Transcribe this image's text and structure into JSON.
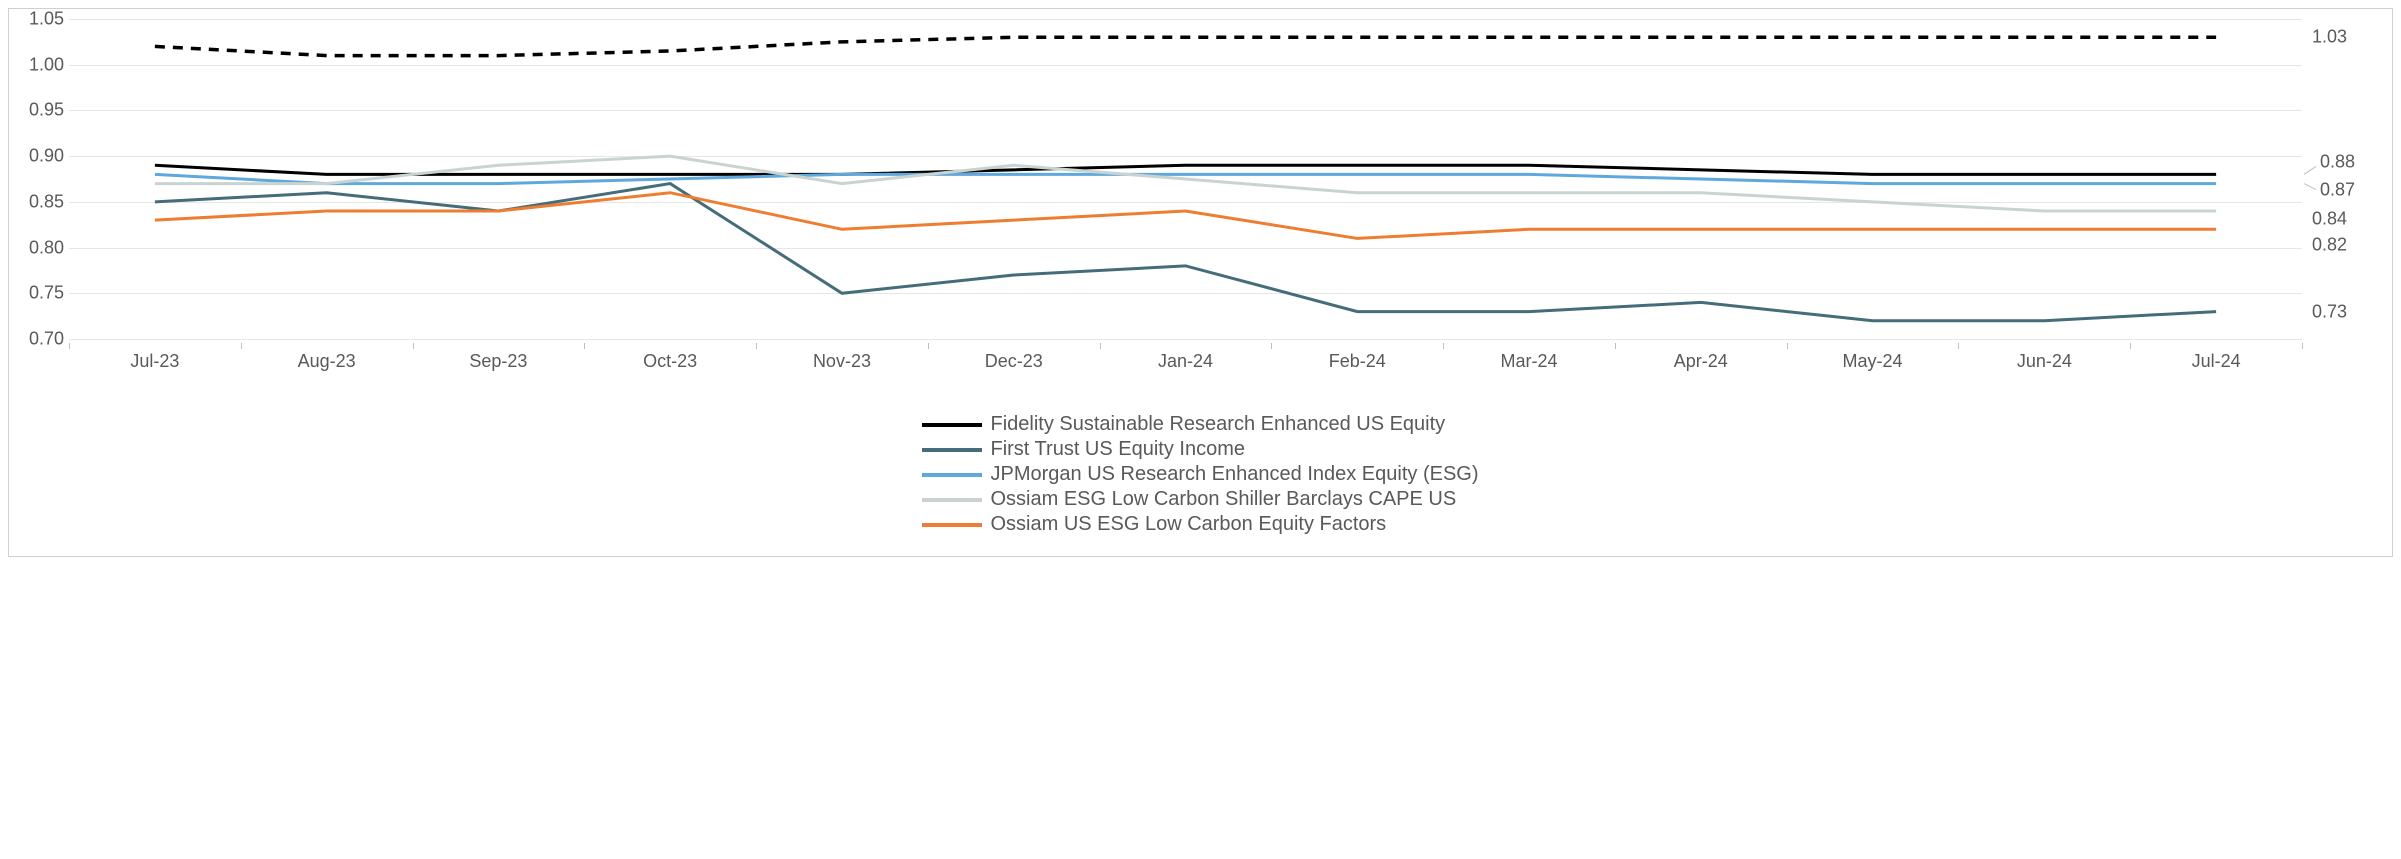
{
  "chart": {
    "type": "line",
    "background_color": "#ffffff",
    "grid_color": "#e6e6e6",
    "axis_tick_color": "#bfbfbf",
    "text_color": "#595959",
    "border_color": "#d0d0d0",
    "y": {
      "min": 0.7,
      "max": 1.05,
      "step": 0.05,
      "labels": [
        "0.70",
        "0.75",
        "0.80",
        "0.85",
        "0.90",
        "0.95",
        "1.00",
        "1.05"
      ]
    },
    "x": {
      "categories": [
        "Jul-23",
        "Aug-23",
        "Sep-23",
        "Oct-23",
        "Nov-23",
        "Dec-23",
        "Jan-24",
        "Feb-24",
        "Mar-24",
        "Apr-24",
        "May-24",
        "Jun-24",
        "Jul-24"
      ]
    },
    "font_size_axis": 18,
    "font_size_legend": 20,
    "series": [
      {
        "name": "Fidelity Sustainable Research Enhanced US Equity",
        "color": "#000000",
        "width": 3.5,
        "dash": "10,8",
        "data": [
          1.02,
          1.01,
          1.01,
          1.015,
          1.025,
          1.03,
          1.03,
          1.03,
          1.03,
          1.03,
          1.03,
          1.03,
          1.03
        ],
        "end_label": "1.03"
      },
      {
        "name": "Fidelity Sustainable Research Enhanced US Equity (solid)",
        "in_legend": false,
        "color": "#000000",
        "width": 3,
        "dash": "",
        "data": [
          0.89,
          0.88,
          0.88,
          0.88,
          0.88,
          0.885,
          0.89,
          0.89,
          0.89,
          0.885,
          0.88,
          0.88,
          0.88
        ],
        "end_label": "0.88"
      },
      {
        "name": "First Trust US Equity Income",
        "color": "#456c79",
        "width": 3,
        "dash": "",
        "data": [
          0.85,
          0.86,
          0.84,
          0.87,
          0.75,
          0.77,
          0.78,
          0.73,
          0.73,
          0.74,
          0.72,
          0.72,
          0.73
        ],
        "end_label": "0.73"
      },
      {
        "name": "JPMorgan US Research Enhanced Index Equity (ESG)",
        "color": "#5fa8dd",
        "width": 3,
        "dash": "",
        "data": [
          0.88,
          0.87,
          0.87,
          0.875,
          0.88,
          0.88,
          0.88,
          0.88,
          0.88,
          0.875,
          0.87,
          0.87,
          0.87
        ],
        "end_label": "0.87"
      },
      {
        "name": "Ossiam ESG Low Carbon Shiller Barclays CAPE US",
        "color": "#c9d4d2",
        "width": 3,
        "dash": "",
        "data": [
          0.87,
          0.87,
          0.89,
          0.9,
          0.87,
          0.89,
          0.875,
          0.86,
          0.86,
          0.86,
          0.85,
          0.84,
          0.84
        ],
        "end_label": "0.84"
      },
      {
        "name": "Ossiam US ESG Low Carbon Equity Factors",
        "color": "#ed7d31",
        "width": 3,
        "dash": "",
        "data": [
          0.83,
          0.84,
          0.84,
          0.86,
          0.82,
          0.83,
          0.84,
          0.81,
          0.82,
          0.82,
          0.82,
          0.82,
          0.82
        ],
        "end_label": "0.82"
      }
    ],
    "legend_items": [
      {
        "label": "Fidelity Sustainable Research Enhanced US Equity",
        "color": "#000000",
        "dash": false
      },
      {
        "label": "First Trust US Equity Income",
        "color": "#456c79",
        "dash": false
      },
      {
        "label": "JPMorgan US Research Enhanced Index Equity (ESG)",
        "color": "#5fa8dd",
        "dash": false
      },
      {
        "label": "Ossiam ESG Low Carbon Shiller Barclays CAPE US",
        "color": "#c9d4d2",
        "dash": false
      },
      {
        "label": "Ossiam US ESG Low Carbon Equity Factors",
        "color": "#ed7d31",
        "dash": false
      }
    ],
    "end_label_bracket": {
      "group": [
        "0.88",
        "0.87"
      ],
      "color": "#bfbfbf"
    }
  }
}
